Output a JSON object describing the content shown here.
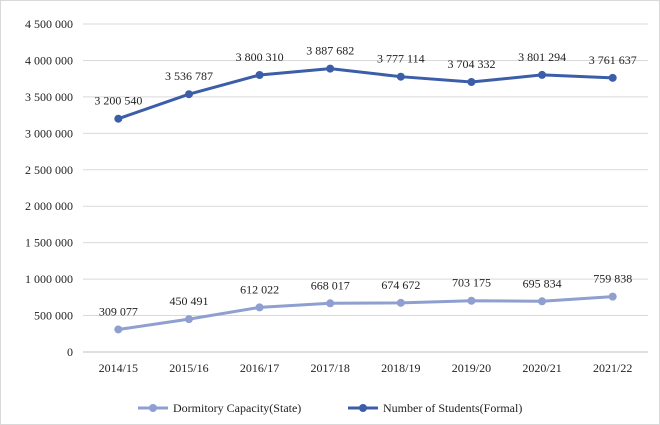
{
  "chart_data": {
    "type": "line",
    "title": "",
    "xlabel": "",
    "ylabel": "",
    "categories": [
      "2014/15",
      "2015/16",
      "2016/17",
      "2017/18",
      "2018/19",
      "2019/20",
      "2020/21",
      "2021/22"
    ],
    "ylim": [
      0,
      4500000
    ],
    "yticks": [
      0,
      500000,
      1000000,
      1500000,
      2000000,
      2500000,
      3000000,
      3500000,
      4000000,
      4500000
    ],
    "ytick_labels": [
      "0",
      "500 000",
      "1 000 000",
      "1 500 000",
      "2 000 000",
      "2 500 000",
      "3 000 000",
      "3 500 000",
      "4 000 000",
      "4 500 000"
    ],
    "grid": true,
    "legend_position": "bottom",
    "series": [
      {
        "name": "Dormitory Capacity(State)",
        "color": "#8e9fd0",
        "values": [
          309077,
          450491,
          612022,
          668017,
          674672,
          703175,
          695834,
          759838
        ],
        "labels": [
          "309 077",
          "450 491",
          "612 022",
          "668 017",
          "674 672",
          "703 175",
          "695 834",
          "759 838"
        ]
      },
      {
        "name": "Number of Students(Formal)",
        "color": "#3c5ea8",
        "values": [
          3200540,
          3536787,
          3800310,
          3887682,
          3777114,
          3704332,
          3801294,
          3761637
        ],
        "labels": [
          "3 200 540",
          "3 536 787",
          "3 800 310",
          "3 887 682",
          "3 777 114",
          "3 704 332",
          "3 801 294",
          "3 761 637"
        ]
      }
    ]
  }
}
